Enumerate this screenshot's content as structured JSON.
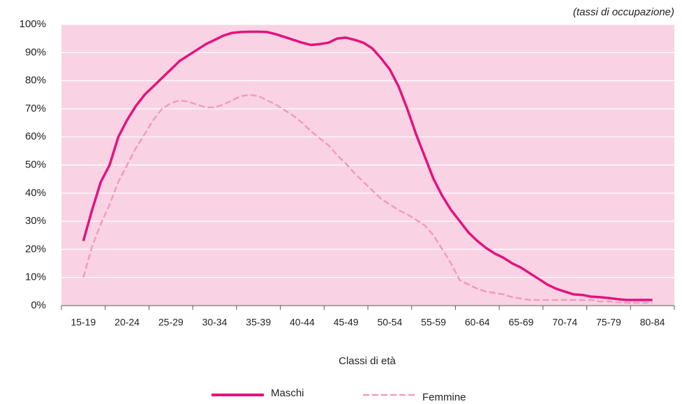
{
  "chart_data": {
    "type": "line",
    "annotation": "(tassi di occupazione)",
    "x_label": "Classi di età",
    "categories": [
      "15-19",
      null,
      null,
      null,
      null,
      "20-24",
      null,
      null,
      null,
      null,
      "25-29",
      null,
      null,
      null,
      null,
      "30-34",
      null,
      null,
      null,
      null,
      "35-39",
      null,
      null,
      null,
      null,
      "40-44",
      null,
      null,
      null,
      null,
      "45-49",
      null,
      null,
      null,
      null,
      "50-54",
      null,
      null,
      null,
      null,
      "55-59",
      null,
      null,
      null,
      null,
      "60-64",
      null,
      null,
      null,
      null,
      "65-69",
      null,
      null,
      null,
      null,
      "70-74",
      null,
      null,
      null,
      null,
      "75-79",
      null,
      null,
      null,
      null,
      "80-84"
    ],
    "series": [
      {
        "name": "Maschi",
        "color": "#e5127d",
        "dash": false,
        "values": [
          23,
          34,
          44,
          50,
          60,
          66,
          71,
          75,
          78,
          81,
          84,
          87,
          89,
          91,
          93,
          94.5,
          96,
          97,
          97.3,
          97.4,
          97.4,
          97.3,
          96.5,
          95.5,
          94.5,
          93.5,
          92.7,
          93,
          93.5,
          95,
          95.3,
          94.5,
          93.5,
          91.5,
          88,
          84,
          78,
          70,
          61,
          53,
          45,
          39,
          34,
          30,
          26,
          23,
          20.5,
          18.5,
          17,
          15,
          13.5,
          11.5,
          9.5,
          7.5,
          6,
          5,
          4,
          3.8,
          3.2,
          3,
          2.7,
          2.3,
          2,
          2,
          2,
          2
        ]
      },
      {
        "name": "Femmine",
        "color": "#f29ac0",
        "dash": true,
        "values": [
          10,
          21,
          29,
          36,
          44,
          50,
          56,
          61,
          66,
          70,
          72,
          73,
          72.5,
          71.5,
          70.5,
          70.5,
          71.5,
          73,
          74.5,
          75,
          74.5,
          73,
          71.5,
          69.5,
          67.5,
          65,
          62,
          59.5,
          57,
          53.5,
          50.5,
          47,
          44,
          41,
          38,
          36,
          34,
          32.5,
          30.5,
          28.5,
          25,
          20,
          15,
          9,
          7.5,
          6,
          5,
          4.5,
          4,
          3,
          2.5,
          2,
          2,
          2,
          2,
          2,
          2,
          2,
          2,
          1.5,
          1.5,
          1.2,
          1,
          1,
          1,
          1
        ]
      }
    ],
    "ylim": [
      0,
      100
    ],
    "yticks": [
      {
        "value": 0,
        "label": "0%"
      },
      {
        "value": 10,
        "label": "10%"
      },
      {
        "value": 20,
        "label": "20%"
      },
      {
        "value": 30,
        "label": "30%"
      },
      {
        "value": 40,
        "label": "40%"
      },
      {
        "value": 50,
        "label": "50%"
      },
      {
        "value": 60,
        "label": "60%"
      },
      {
        "value": 70,
        "label": "70%"
      },
      {
        "value": 80,
        "label": "80%"
      },
      {
        "value": 90,
        "label": "90%"
      },
      {
        "value": 100,
        "label": "100%"
      }
    ],
    "grid": true,
    "background": "#f9d3e4"
  }
}
